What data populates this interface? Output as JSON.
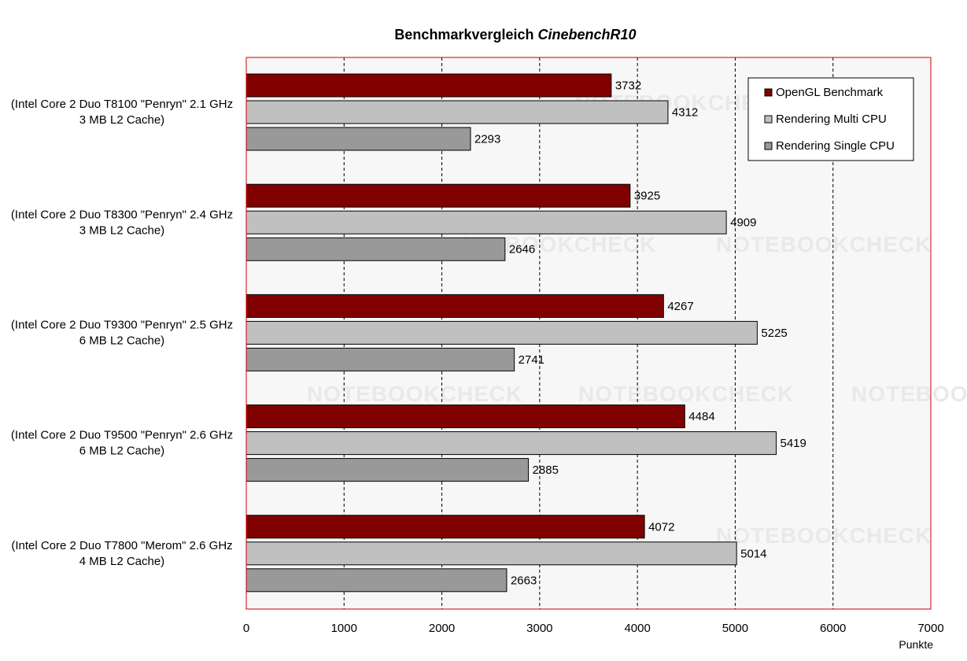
{
  "chart_data": {
    "type": "bar",
    "orientation": "horizontal",
    "title": "Benchmarkvergleich",
    "title_italic": "CinebenchR10",
    "categories": [
      "(Intel Core 2 Duo T8100 \"Penryn\" 2.1 GHz\n3 MB L2 Cache)",
      "(Intel Core 2 Duo T8300 \"Penryn\" 2.4 GHz\n3 MB L2 Cache)",
      "(Intel Core 2 Duo T9300 \"Penryn\" 2.5 GHz\n6 MB L2 Cache)",
      "(Intel Core 2 Duo T9500 \"Penryn\" 2.6 GHz\n6 MB L2 Cache)",
      "(Intel Core 2 Duo T7800 \"Merom\" 2.6 GHz\n4 MB L2 Cache)"
    ],
    "series": [
      {
        "name": "OpenGL Benchmark",
        "color": "#800000",
        "values": [
          3732,
          3925,
          4267,
          4484,
          4072
        ]
      },
      {
        "name": "Rendering Multi CPU",
        "color": "#c0c0c0",
        "values": [
          4312,
          4909,
          5225,
          5419,
          5014
        ]
      },
      {
        "name": "Rendering Single CPU",
        "color": "#999999",
        "values": [
          2293,
          2646,
          2741,
          2885,
          2663
        ]
      }
    ],
    "xlim": [
      0,
      7000
    ],
    "xticks": [
      0,
      1000,
      2000,
      3000,
      4000,
      5000,
      6000,
      7000
    ],
    "xlabel": "Punkte",
    "ylabel": "",
    "grid": true,
    "legend_position": "top-right",
    "plot_border_color": "#cc0000",
    "plot_background": "#f7f7f7"
  },
  "watermark_text": "NOTEBOOKCHECK"
}
